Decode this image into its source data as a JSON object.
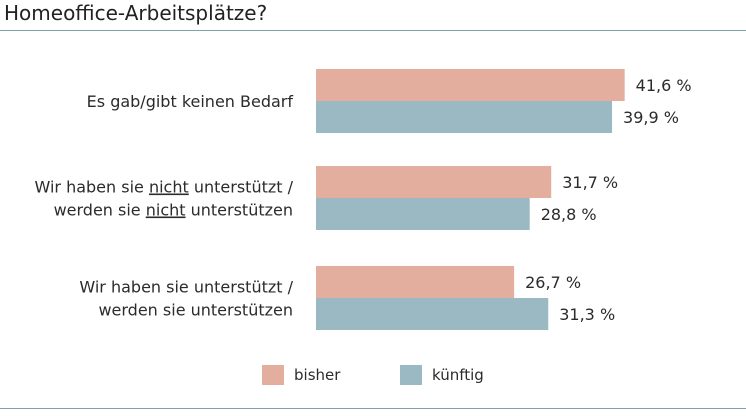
{
  "chart_data": {
    "type": "bar",
    "orientation": "horizontal",
    "title": "Homeoffice-Arbeitsplätze?",
    "xlim": [
      0,
      50
    ],
    "grid": false,
    "legend_position": "bottom",
    "categories": [
      {
        "name": "cat-keinen-bedarf",
        "lines": [
          [
            {
              "text": "Es gab/gibt keinen Bedarf",
              "underline": false
            }
          ]
        ]
      },
      {
        "name": "cat-nicht-unterstuetzt",
        "lines": [
          [
            {
              "text": "Wir haben sie ",
              "underline": false
            },
            {
              "text": "nicht",
              "underline": true
            },
            {
              "text": " unterstützt /",
              "underline": false
            }
          ],
          [
            {
              "text": "werden sie ",
              "underline": false
            },
            {
              "text": "nicht",
              "underline": true
            },
            {
              "text": " unterstützen",
              "underline": false
            }
          ]
        ]
      },
      {
        "name": "cat-unterstuetzt",
        "lines": [
          [
            {
              "text": "Wir haben sie unterstützt /",
              "underline": false
            }
          ],
          [
            {
              "text": "werden sie unterstützen",
              "underline": false
            }
          ]
        ]
      }
    ],
    "series": [
      {
        "name": "bisher",
        "color": "#e4ae9f",
        "values": [
          41.6,
          31.7,
          26.7
        ],
        "labels": [
          "41,6 %",
          "31,7 %",
          "26,7 %"
        ]
      },
      {
        "name": "künftig",
        "color": "#9ab9c3",
        "values": [
          39.9,
          28.8,
          31.3
        ],
        "labels": [
          "39,9 %",
          "28,8 %",
          "31,3 %"
        ]
      }
    ]
  }
}
